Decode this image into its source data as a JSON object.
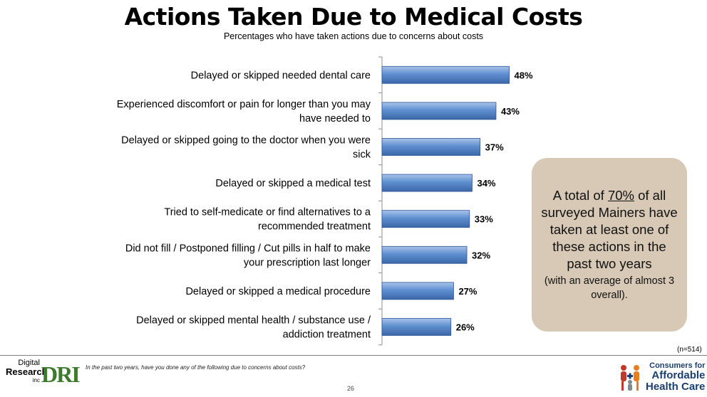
{
  "header": {
    "title": "Actions Taken Due to Medical Costs",
    "subtitle": "Percentages who have taken actions due to concerns about costs"
  },
  "chart_data": {
    "type": "bar",
    "orientation": "horizontal",
    "title": "Actions Taken Due to Medical Costs",
    "xlabel": "",
    "ylabel": "",
    "xlim": [
      0,
      100
    ],
    "grid": false,
    "categories": [
      [
        "Delayed or skipped needed dental care"
      ],
      [
        "Experienced discomfort or pain for longer than you may",
        "have needed to"
      ],
      [
        "Delayed or skipped going to the doctor when you were",
        "sick"
      ],
      [
        "Delayed or skipped a medical test"
      ],
      [
        "Tried to self-medicate or find alternatives to a",
        "recommended treatment"
      ],
      [
        "Did not fill / Postponed filling / Cut pills in half to make",
        "your prescription last longer"
      ],
      [
        "Delayed or skipped a medical procedure"
      ],
      [
        "Delayed or skipped mental health / substance use /",
        "addiction treatment"
      ]
    ],
    "values": [
      48,
      43,
      37,
      34,
      33,
      32,
      27,
      26
    ],
    "value_labels": [
      "48%",
      "43%",
      "37%",
      "34%",
      "33%",
      "32%",
      "27%",
      "26%"
    ],
    "bar_color": "#4f81bd"
  },
  "callout": {
    "pre": "A total of ",
    "highlight": "70%",
    "post": " of all surveyed Mainers have taken at least one of these actions in the past two years",
    "note": "(with an average of almost 3 overall)."
  },
  "sample_size": "(n=514)",
  "footer": {
    "question": "In the past two years, have you done any of the following due to concerns about costs?",
    "page_number": "26",
    "left_logo": {
      "line1": "Digital",
      "line2": "Research",
      "line3": "inc",
      "mark": "DRI"
    },
    "right_logo": {
      "line1": "Consumers for",
      "line2": "Affordable",
      "line3": "Health Care"
    }
  }
}
